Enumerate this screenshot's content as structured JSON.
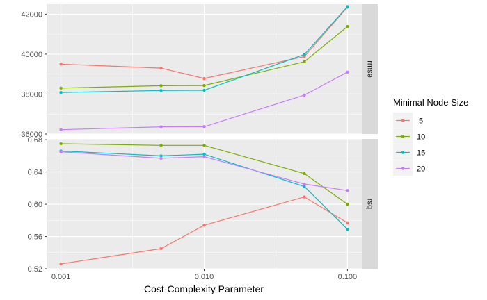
{
  "chart_data": {
    "type": "line",
    "xlabel": "Cost-Complexity Parameter",
    "x_scale": "log10",
    "x_range": [
      0.001,
      0.1
    ],
    "x_ticks": [
      "0.001",
      "0.010",
      "0.100"
    ],
    "x": [
      0.001,
      0.005,
      0.01,
      0.05,
      0.1
    ],
    "legend": {
      "title": "Minimal Node Size",
      "position": "right",
      "entries": [
        " 5",
        "10",
        "15",
        "20"
      ]
    },
    "facets": [
      {
        "strip": "rmse",
        "y_range": [
          36000,
          42500
        ],
        "y_ticks": [
          "36000",
          "38000",
          "40000",
          "42000"
        ],
        "series": [
          {
            "name": " 5",
            "color": "#F8766D",
            "values": [
              39500,
              39300,
              38780,
              39880,
              42350
            ]
          },
          {
            "name": "10",
            "color": "#7CAE00",
            "values": [
              38300,
              38420,
              38430,
              39620,
              41380
            ]
          },
          {
            "name": "15",
            "color": "#00BFC4",
            "values": [
              38080,
              38180,
              38190,
              39980,
              42380
            ]
          },
          {
            "name": "20",
            "color": "#C77CFF",
            "values": [
              36220,
              36360,
              36370,
              37950,
              39100
            ]
          }
        ]
      },
      {
        "strip": "rsq",
        "y_range": [
          0.52,
          0.681
        ],
        "y_ticks": [
          "0.52",
          "0.56",
          "0.60",
          "0.64",
          "0.68"
        ],
        "series": [
          {
            "name": " 5",
            "color": "#F8766D",
            "values": [
              0.526,
              0.545,
              0.574,
              0.609,
              0.577
            ]
          },
          {
            "name": "10",
            "color": "#7CAE00",
            "values": [
              0.675,
              0.673,
              0.673,
              0.638,
              0.6
            ]
          },
          {
            "name": "15",
            "color": "#00BFC4",
            "values": [
              0.666,
              0.66,
              0.662,
              0.622,
              0.569
            ]
          },
          {
            "name": "20",
            "color": "#C77CFF",
            "values": [
              0.665,
              0.657,
              0.659,
              0.625,
              0.617
            ]
          }
        ]
      }
    ]
  }
}
